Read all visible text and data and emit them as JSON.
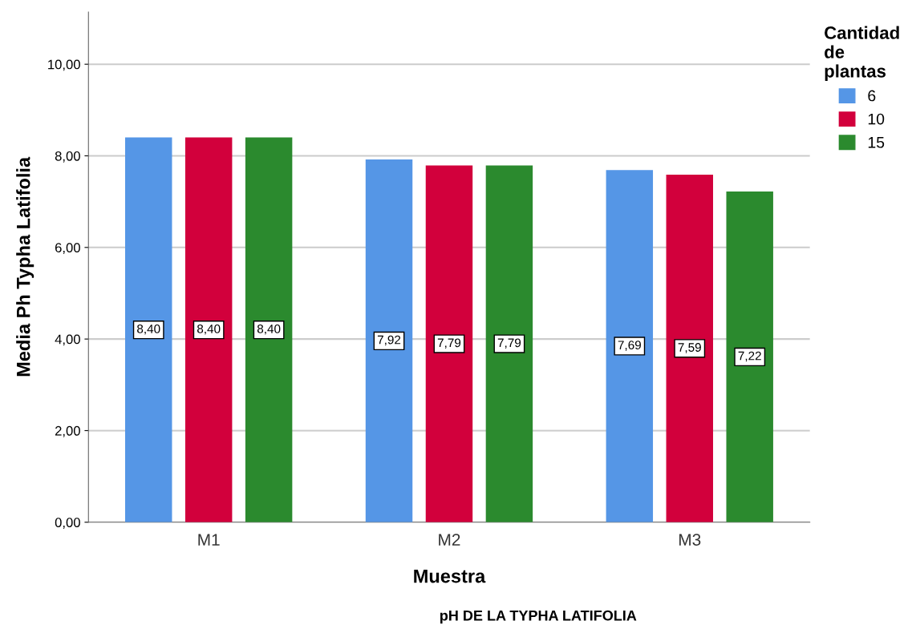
{
  "chart_data": {
    "type": "bar",
    "xlabel": "Muestra",
    "ylabel": "Media Ph Typha Latifolia",
    "legend_title": "Cantidad\nde\nplantas",
    "legend": "top right",
    "grid": "y",
    "categories": [
      "M1",
      "M2",
      "M3"
    ],
    "ylim": [
      0,
      11.14
    ],
    "yticks": [
      {
        "value": 0,
        "label": "0,00"
      },
      {
        "value": 2,
        "label": "2,00"
      },
      {
        "value": 4,
        "label": "4,00"
      },
      {
        "value": 6,
        "label": "6,00"
      },
      {
        "value": 8,
        "label": "8,00"
      },
      {
        "value": 10,
        "label": "10,00"
      }
    ],
    "series": [
      {
        "name": "6",
        "color": "#5596e6",
        "values": [
          8.4,
          7.92,
          7.69
        ],
        "value_labels": [
          "8,40",
          "7,92",
          "7,69"
        ]
      },
      {
        "name": "10",
        "color": "#d2003c",
        "values": [
          8.4,
          7.79,
          7.59
        ],
        "value_labels": [
          "8,40",
          "7,79",
          "7,59"
        ]
      },
      {
        "name": "15",
        "color": "#2b8a2e",
        "values": [
          8.4,
          7.79,
          7.22
        ],
        "value_labels": [
          "8,40",
          "7,79",
          "7,22"
        ]
      }
    ],
    "annotations": [
      "pH DE LA TYPHA LATIFOLIA"
    ]
  }
}
